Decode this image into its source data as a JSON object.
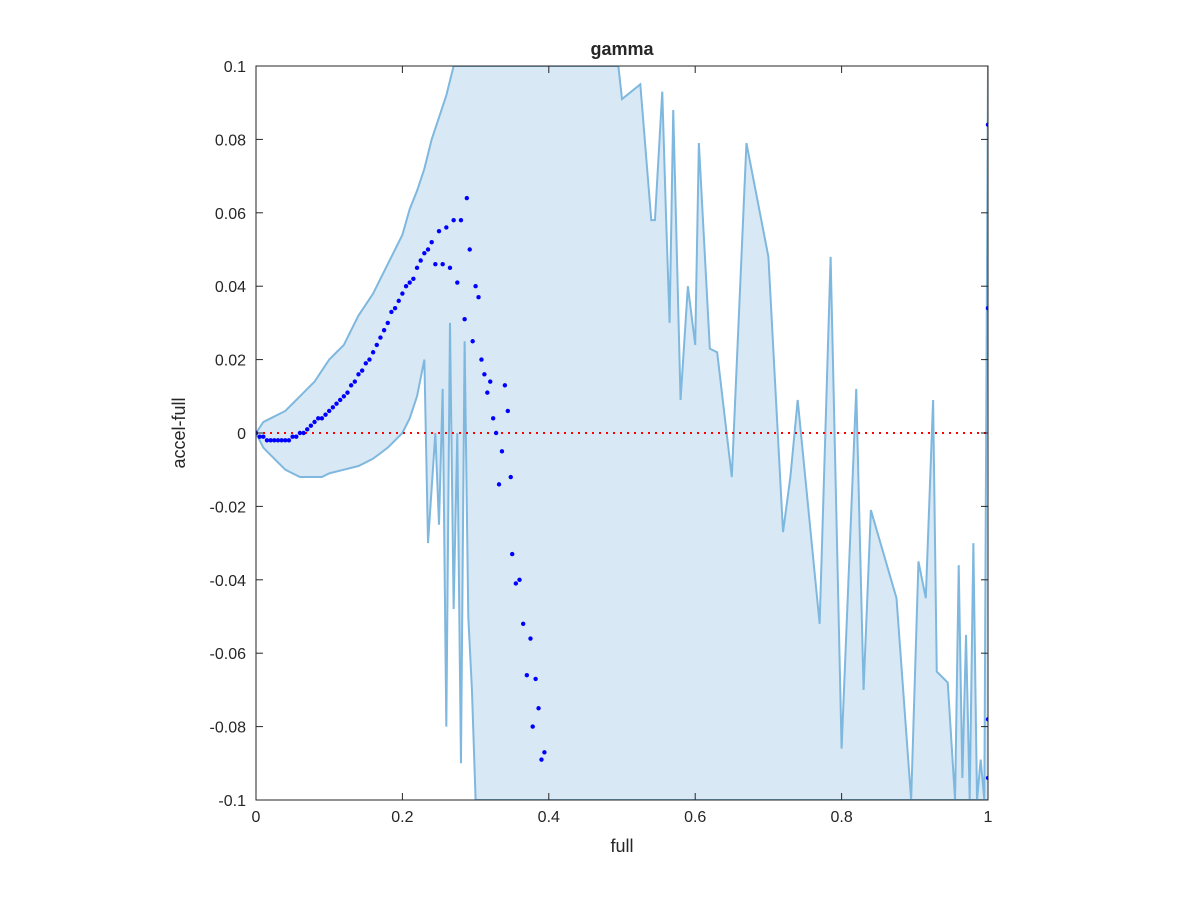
{
  "chart_data": {
    "type": "scatter",
    "title": "gamma",
    "xlabel": "full",
    "ylabel": "accel-full",
    "xlim": [
      0,
      1
    ],
    "ylim": [
      -0.1,
      0.1
    ],
    "xticks": [
      0,
      0.2,
      0.4,
      0.6,
      0.8,
      1
    ],
    "xtick_labels": [
      "0",
      "0.2",
      "0.4",
      "0.6",
      "0.8",
      "1"
    ],
    "yticks": [
      0.1,
      0.08,
      0.06,
      0.04,
      0.02,
      0,
      -0.02,
      -0.04,
      -0.06,
      -0.08,
      -0.1
    ],
    "ytick_labels": [
      "0.1",
      "0.08",
      "0.06",
      "0.04",
      "0.02",
      "0",
      "-0.02",
      "-0.04",
      "-0.06",
      "-0.08",
      "-0.1"
    ],
    "grid": false,
    "reference_line": {
      "y": 0,
      "color": "#ff0000",
      "style": "dotted"
    },
    "band": {
      "fill_color": "#d9e8f5",
      "line_color": "#7fb8de",
      "upper": [
        [
          0.0,
          0.0
        ],
        [
          0.01,
          0.003
        ],
        [
          0.02,
          0.004
        ],
        [
          0.03,
          0.005
        ],
        [
          0.04,
          0.006
        ],
        [
          0.05,
          0.008
        ],
        [
          0.06,
          0.01
        ],
        [
          0.07,
          0.012
        ],
        [
          0.08,
          0.014
        ],
        [
          0.09,
          0.017
        ],
        [
          0.1,
          0.02
        ],
        [
          0.11,
          0.022
        ],
        [
          0.12,
          0.024
        ],
        [
          0.13,
          0.028
        ],
        [
          0.14,
          0.032
        ],
        [
          0.15,
          0.035
        ],
        [
          0.16,
          0.038
        ],
        [
          0.17,
          0.042
        ],
        [
          0.18,
          0.046
        ],
        [
          0.19,
          0.05
        ],
        [
          0.2,
          0.054
        ],
        [
          0.21,
          0.061
        ],
        [
          0.22,
          0.066
        ],
        [
          0.23,
          0.072
        ],
        [
          0.24,
          0.08
        ],
        [
          0.25,
          0.086
        ],
        [
          0.26,
          0.092
        ],
        [
          0.27,
          0.1
        ],
        [
          0.3,
          0.1
        ],
        [
          0.35,
          0.1
        ],
        [
          0.4,
          0.1
        ],
        [
          0.45,
          0.1
        ],
        [
          0.495,
          0.1
        ],
        [
          0.5,
          0.091
        ],
        [
          0.525,
          0.095
        ],
        [
          0.54,
          0.058
        ],
        [
          0.545,
          0.058
        ],
        [
          0.555,
          0.093
        ],
        [
          0.56,
          0.06
        ],
        [
          0.565,
          0.03
        ],
        [
          0.57,
          0.088
        ],
        [
          0.58,
          0.009
        ],
        [
          0.59,
          0.04
        ],
        [
          0.6,
          0.024
        ],
        [
          0.605,
          0.079
        ],
        [
          0.62,
          0.023
        ],
        [
          0.63,
          0.022
        ],
        [
          0.65,
          -0.012
        ],
        [
          0.67,
          0.079
        ],
        [
          0.7,
          0.048
        ],
        [
          0.72,
          -0.027
        ],
        [
          0.73,
          -0.012
        ],
        [
          0.74,
          0.009
        ],
        [
          0.77,
          -0.052
        ],
        [
          0.785,
          0.048
        ],
        [
          0.8,
          -0.086
        ],
        [
          0.82,
          0.012
        ],
        [
          0.83,
          -0.07
        ],
        [
          0.84,
          -0.021
        ],
        [
          0.875,
          -0.045
        ],
        [
          0.895,
          -0.1
        ],
        [
          0.905,
          -0.035
        ],
        [
          0.915,
          -0.045
        ],
        [
          0.925,
          0.009
        ],
        [
          0.93,
          -0.065
        ],
        [
          0.945,
          -0.068
        ],
        [
          0.955,
          -0.1
        ],
        [
          0.96,
          -0.036
        ],
        [
          0.965,
          -0.094
        ],
        [
          0.97,
          -0.055
        ],
        [
          0.975,
          -0.1
        ],
        [
          0.98,
          -0.03
        ],
        [
          0.985,
          -0.1
        ],
        [
          0.99,
          -0.089
        ],
        [
          0.995,
          -0.1
        ],
        [
          1.0,
          0.1
        ]
      ],
      "lower": [
        [
          0.0,
          0.0
        ],
        [
          0.01,
          -0.004
        ],
        [
          0.02,
          -0.006
        ],
        [
          0.03,
          -0.008
        ],
        [
          0.04,
          -0.01
        ],
        [
          0.05,
          -0.011
        ],
        [
          0.06,
          -0.012
        ],
        [
          0.07,
          -0.012
        ],
        [
          0.08,
          -0.012
        ],
        [
          0.09,
          -0.012
        ],
        [
          0.1,
          -0.011
        ],
        [
          0.12,
          -0.01
        ],
        [
          0.14,
          -0.009
        ],
        [
          0.16,
          -0.007
        ],
        [
          0.18,
          -0.004
        ],
        [
          0.2,
          0.0
        ],
        [
          0.21,
          0.004
        ],
        [
          0.22,
          0.01
        ],
        [
          0.23,
          0.02
        ],
        [
          0.235,
          -0.03
        ],
        [
          0.245,
          0.0
        ],
        [
          0.25,
          -0.025
        ],
        [
          0.255,
          0.012
        ],
        [
          0.26,
          -0.08
        ],
        [
          0.265,
          0.03
        ],
        [
          0.27,
          -0.048
        ],
        [
          0.275,
          0.0
        ],
        [
          0.28,
          -0.09
        ],
        [
          0.285,
          0.025
        ],
        [
          0.29,
          -0.05
        ],
        [
          0.295,
          -0.07
        ],
        [
          0.3,
          -0.1
        ],
        [
          0.35,
          -0.1
        ],
        [
          0.4,
          -0.1
        ],
        [
          0.5,
          -0.1
        ],
        [
          0.6,
          -0.1
        ],
        [
          0.7,
          -0.1
        ],
        [
          0.8,
          -0.1
        ],
        [
          0.9,
          -0.1
        ],
        [
          1.0,
          -0.1
        ]
      ]
    },
    "series": [
      {
        "color": "#0000ff",
        "marker": "dot",
        "points": [
          [
            0.0,
            0.0
          ],
          [
            0.005,
            -0.001
          ],
          [
            0.01,
            -0.001
          ],
          [
            0.015,
            -0.002
          ],
          [
            0.02,
            -0.002
          ],
          [
            0.025,
            -0.002
          ],
          [
            0.03,
            -0.002
          ],
          [
            0.035,
            -0.002
          ],
          [
            0.04,
            -0.002
          ],
          [
            0.045,
            -0.002
          ],
          [
            0.05,
            -0.001
          ],
          [
            0.055,
            -0.001
          ],
          [
            0.06,
            0.0
          ],
          [
            0.065,
            0.0
          ],
          [
            0.07,
            0.001
          ],
          [
            0.075,
            0.002
          ],
          [
            0.08,
            0.003
          ],
          [
            0.085,
            0.004
          ],
          [
            0.09,
            0.004
          ],
          [
            0.095,
            0.005
          ],
          [
            0.1,
            0.006
          ],
          [
            0.105,
            0.007
          ],
          [
            0.11,
            0.008
          ],
          [
            0.115,
            0.009
          ],
          [
            0.12,
            0.01
          ],
          [
            0.125,
            0.011
          ],
          [
            0.13,
            0.013
          ],
          [
            0.135,
            0.014
          ],
          [
            0.14,
            0.016
          ],
          [
            0.145,
            0.017
          ],
          [
            0.15,
            0.019
          ],
          [
            0.155,
            0.02
          ],
          [
            0.16,
            0.022
          ],
          [
            0.165,
            0.024
          ],
          [
            0.17,
            0.026
          ],
          [
            0.175,
            0.028
          ],
          [
            0.18,
            0.03
          ],
          [
            0.185,
            0.033
          ],
          [
            0.19,
            0.034
          ],
          [
            0.195,
            0.036
          ],
          [
            0.2,
            0.038
          ],
          [
            0.205,
            0.04
          ],
          [
            0.21,
            0.041
          ],
          [
            0.215,
            0.042
          ],
          [
            0.22,
            0.045
          ],
          [
            0.225,
            0.047
          ],
          [
            0.23,
            0.049
          ],
          [
            0.235,
            0.05
          ],
          [
            0.24,
            0.052
          ],
          [
            0.245,
            0.046
          ],
          [
            0.25,
            0.055
          ],
          [
            0.255,
            0.046
          ],
          [
            0.26,
            0.056
          ],
          [
            0.265,
            0.045
          ],
          [
            0.27,
            0.058
          ],
          [
            0.275,
            0.041
          ],
          [
            0.28,
            0.058
          ],
          [
            0.285,
            0.031
          ],
          [
            0.288,
            0.064
          ],
          [
            0.292,
            0.05
          ],
          [
            0.296,
            0.025
          ],
          [
            0.3,
            0.04
          ],
          [
            0.304,
            0.037
          ],
          [
            0.308,
            0.02
          ],
          [
            0.312,
            0.016
          ],
          [
            0.316,
            0.011
          ],
          [
            0.32,
            0.014
          ],
          [
            0.324,
            0.004
          ],
          [
            0.328,
            0.0
          ],
          [
            0.332,
            -0.014
          ],
          [
            0.336,
            -0.005
          ],
          [
            0.34,
            0.013
          ],
          [
            0.344,
            0.006
          ],
          [
            0.348,
            -0.012
          ],
          [
            0.35,
            -0.033
          ],
          [
            0.355,
            -0.041
          ],
          [
            0.36,
            -0.04
          ],
          [
            0.365,
            -0.052
          ],
          [
            0.37,
            -0.066
          ],
          [
            0.375,
            -0.056
          ],
          [
            0.378,
            -0.08
          ],
          [
            0.382,
            -0.067
          ],
          [
            0.386,
            -0.075
          ],
          [
            0.39,
            -0.089
          ],
          [
            0.394,
            -0.087
          ],
          [
            1.0,
            0.084
          ],
          [
            1.0,
            0.034
          ],
          [
            1.0,
            -0.078
          ],
          [
            1.0,
            -0.094
          ]
        ]
      }
    ]
  }
}
